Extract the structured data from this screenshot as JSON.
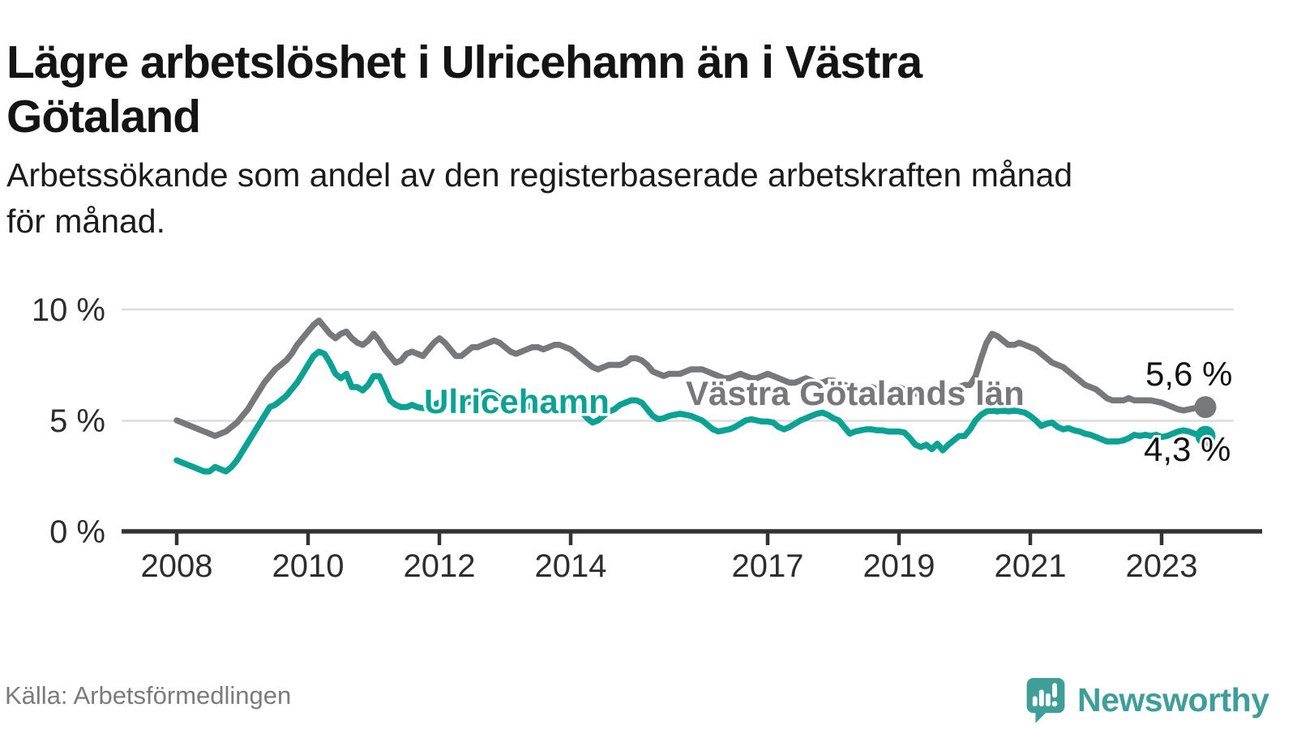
{
  "header": {
    "title_line1": "Lägre arbetslöshet i Ulricehamn än i Västra",
    "title_line2": "Götaland",
    "subtitle_line1": "Arbetssökande som andel av den registerbaserade arbetskraften månad",
    "subtitle_line2": "för månad."
  },
  "footer": {
    "source": "Källa: Arbetsförmedlingen",
    "brand": "Newsworthy",
    "brand_color": "#3f9e98"
  },
  "axes": {
    "y_ticks": [
      "10 %",
      "5 %",
      "0 %"
    ],
    "x_ticks": [
      "2008",
      "2010",
      "2012",
      "2014",
      "2017",
      "2019",
      "2021",
      "2023"
    ]
  },
  "chart_data": {
    "type": "line",
    "title": "Lägre arbetslöshet i Ulricehamn än i Västra Götaland",
    "subtitle": "Arbetssökande som andel av den registerbaserade arbetskraften månad för månad.",
    "x_start": "2008-01",
    "x_end": "2023-09",
    "frequency": "monthly",
    "x_tick_years": [
      2008,
      2010,
      2012,
      2014,
      2017,
      2019,
      2021,
      2023
    ],
    "ylabel": "%",
    "ylim": [
      0,
      10.5
    ],
    "grid": "horizontal",
    "legend_position": "inline-labels",
    "series": [
      {
        "name": "Västra Götalands län",
        "color": "#77787a",
        "end_label": "5,6 %",
        "end_value": 5.6,
        "values": [
          5.0,
          4.9,
          4.8,
          4.7,
          4.6,
          4.5,
          4.4,
          4.3,
          4.4,
          4.5,
          4.7,
          4.9,
          5.2,
          5.5,
          5.9,
          6.3,
          6.7,
          7.0,
          7.3,
          7.5,
          7.7,
          8.0,
          8.4,
          8.7,
          9.0,
          9.3,
          9.5,
          9.2,
          8.9,
          8.7,
          8.9,
          9.0,
          8.7,
          8.5,
          8.4,
          8.6,
          8.9,
          8.6,
          8.2,
          7.9,
          7.6,
          7.7,
          8.0,
          8.1,
          8.0,
          7.9,
          8.2,
          8.5,
          8.7,
          8.5,
          8.2,
          7.9,
          7.9,
          8.1,
          8.3,
          8.3,
          8.4,
          8.5,
          8.6,
          8.5,
          8.3,
          8.1,
          8.0,
          8.1,
          8.2,
          8.3,
          8.3,
          8.2,
          8.3,
          8.4,
          8.4,
          8.3,
          8.2,
          8.0,
          7.8,
          7.6,
          7.4,
          7.3,
          7.4,
          7.5,
          7.5,
          7.5,
          7.6,
          7.8,
          7.8,
          7.7,
          7.5,
          7.2,
          7.1,
          7.0,
          7.1,
          7.1,
          7.1,
          7.2,
          7.3,
          7.3,
          7.3,
          7.2,
          7.1,
          7.0,
          6.9,
          6.9,
          7.0,
          7.1,
          7.0,
          6.9,
          6.9,
          7.0,
          7.1,
          7.0,
          6.9,
          6.8,
          6.7,
          6.7,
          6.8,
          6.9,
          6.8,
          6.7,
          6.7,
          6.8,
          6.8,
          6.7,
          6.6,
          6.5,
          6.4,
          6.3,
          6.4,
          6.5,
          6.4,
          6.3,
          6.3,
          6.4,
          6.5,
          6.4,
          6.3,
          6.2,
          6.2,
          6.3,
          6.4,
          6.4,
          6.3,
          6.3,
          6.4,
          6.5,
          6.6,
          6.6,
          7.0,
          7.8,
          8.5,
          8.9,
          8.8,
          8.6,
          8.4,
          8.4,
          8.5,
          8.4,
          8.3,
          8.2,
          8.0,
          7.8,
          7.6,
          7.5,
          7.4,
          7.2,
          7.0,
          6.8,
          6.6,
          6.5,
          6.4,
          6.2,
          6.0,
          5.9,
          5.9,
          5.9,
          6.0,
          5.9,
          5.9,
          5.9,
          5.9,
          5.85,
          5.8,
          5.7,
          5.6,
          5.5,
          5.45,
          5.5,
          5.55,
          5.6,
          5.6
        ]
      },
      {
        "name": "Ulricehamn",
        "color": "#0ba294",
        "end_label": "4,3 %",
        "end_value": 4.3,
        "values": [
          3.2,
          3.1,
          3.0,
          2.9,
          2.8,
          2.7,
          2.7,
          2.9,
          2.8,
          2.7,
          2.9,
          3.2,
          3.6,
          4.0,
          4.4,
          4.8,
          5.2,
          5.6,
          5.7,
          5.9,
          6.1,
          6.4,
          6.7,
          7.1,
          7.5,
          7.9,
          8.1,
          8.0,
          7.6,
          7.1,
          6.9,
          7.1,
          6.5,
          6.5,
          6.35,
          6.6,
          7.0,
          7.0,
          6.5,
          5.9,
          5.7,
          5.6,
          5.6,
          5.7,
          5.6,
          5.55,
          5.6,
          5.7,
          5.8,
          5.9,
          5.8,
          5.7,
          5.7,
          5.8,
          5.9,
          6.0,
          6.2,
          6.3,
          6.2,
          6.0,
          5.9,
          5.8,
          5.7,
          5.6,
          5.6,
          5.7,
          5.8,
          5.8,
          5.7,
          5.6,
          5.6,
          5.7,
          5.7,
          5.6,
          5.4,
          5.1,
          4.9,
          5.0,
          5.2,
          5.4,
          5.5,
          5.7,
          5.8,
          5.9,
          5.9,
          5.8,
          5.5,
          5.2,
          5.05,
          5.1,
          5.2,
          5.25,
          5.3,
          5.25,
          5.2,
          5.1,
          5.0,
          4.8,
          4.6,
          4.5,
          4.55,
          4.6,
          4.7,
          4.85,
          5.0,
          5.05,
          5.0,
          4.95,
          4.95,
          4.9,
          4.7,
          4.6,
          4.7,
          4.85,
          5.0,
          5.1,
          5.2,
          5.3,
          5.35,
          5.25,
          5.1,
          5.0,
          4.7,
          4.4,
          4.5,
          4.55,
          4.6,
          4.6,
          4.55,
          4.55,
          4.5,
          4.5,
          4.5,
          4.45,
          4.2,
          3.9,
          3.8,
          3.9,
          3.7,
          3.95,
          3.65,
          3.9,
          4.1,
          4.3,
          4.3,
          4.6,
          5.0,
          5.25,
          5.4,
          5.45,
          5.4,
          5.45,
          5.4,
          5.45,
          5.4,
          5.35,
          5.2,
          5.0,
          4.75,
          4.85,
          4.9,
          4.7,
          4.6,
          4.65,
          4.55,
          4.5,
          4.4,
          4.35,
          4.25,
          4.15,
          4.05,
          4.05,
          4.05,
          4.1,
          4.2,
          4.35,
          4.3,
          4.35,
          4.3,
          4.35,
          4.25,
          4.3,
          4.4,
          4.5,
          4.55,
          4.5,
          4.4,
          4.35,
          4.3
        ]
      }
    ]
  }
}
